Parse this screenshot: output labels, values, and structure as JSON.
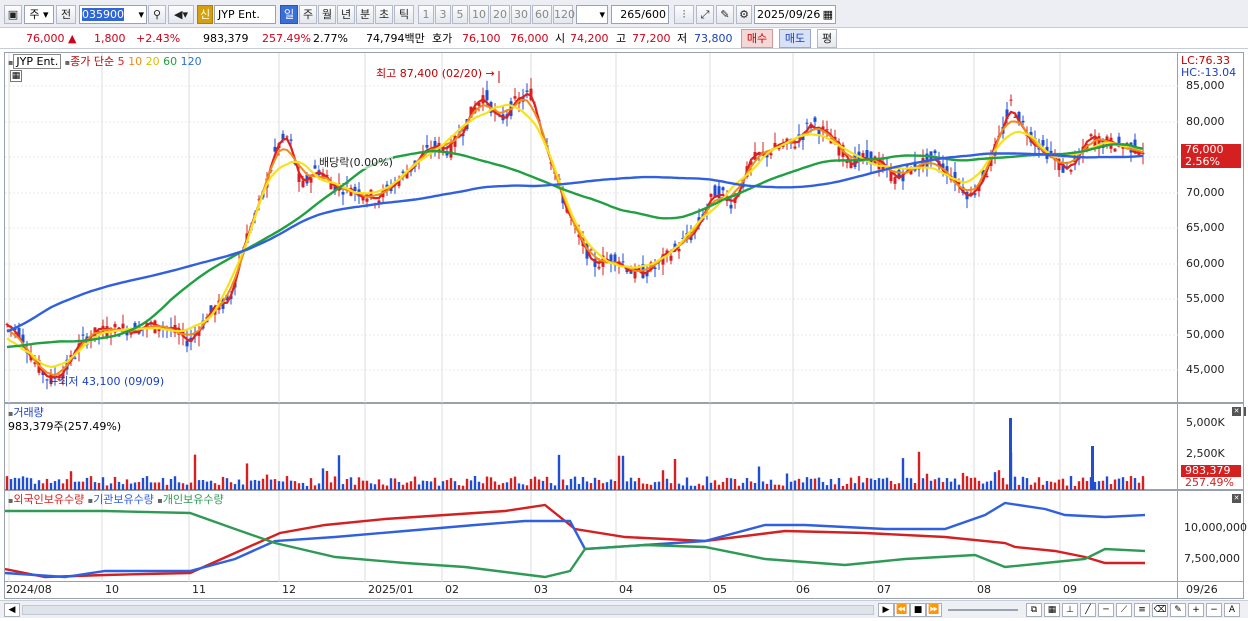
{
  "toolbar": {
    "period_label": "주",
    "view_label": "전",
    "code": "035900",
    "credit_badge": "신",
    "stock_name": "JYP Ent.",
    "periods": [
      "일",
      "주",
      "월",
      "년",
      "분",
      "초",
      "틱"
    ],
    "numbers": [
      "1",
      "3",
      "5",
      "10",
      "20",
      "30",
      "60",
      "120"
    ],
    "count_value": "265",
    "count_max": "/600",
    "date": "2025/09/26"
  },
  "quote": {
    "price": "76,000",
    "change": "1,800",
    "change_pct": "+2.43%",
    "volume": "983,379",
    "volume_ratio": "257.49%",
    "turnover": "2.77%",
    "amount": "74,794백만",
    "ask_label": "호가",
    "ask": "76,100",
    "bid": "76,000",
    "open_label": "시",
    "open": "74,200",
    "high_label": "고",
    "high": "77,200",
    "low_label": "저",
    "low": "73,800",
    "buy_label": "매수",
    "sell_label": "매도",
    "avg_label": "평"
  },
  "price_panel": {
    "stock_tag": "JYP Ent.",
    "legend_prefix": "종가 단순",
    "ma_periods": [
      "5",
      "10",
      "20",
      "60",
      "120"
    ],
    "ma_colors": [
      "#e02020",
      "#f08a1a",
      "#f6e21c",
      "#20a040",
      "#3060e0"
    ],
    "high_annot": "최고 87,400 (02/20)",
    "low_annot": "최저 43,100 (09/09)",
    "dividend_annot": "배당락(0.00%)",
    "lc_label": "LC:76.33",
    "hc_label": "HC:-13.04",
    "price_tag": "76,000",
    "pct_tag": "2.56%",
    "y_ticks": [
      "85,000",
      "80,000",
      "75,000",
      "70,000",
      "65,000",
      "60,000",
      "55,000",
      "50,000",
      "45,000"
    ]
  },
  "volume_panel": {
    "title": "거래량",
    "value": "983,379주(257.49%)",
    "y_ticks": [
      "5,000K",
      "2,500K"
    ],
    "tag_value": "983,379",
    "tag_pct": "257.49%"
  },
  "holdings_panel": {
    "legend": [
      "외국인보유수량",
      "기관보유수량",
      "개인보유수량"
    ],
    "colors": [
      "#d42020",
      "#3060e0",
      "#2f9a55"
    ],
    "y_ticks": [
      "10,000,000",
      "7,500,000"
    ]
  },
  "x_axis": {
    "labels": [
      "2024/08",
      "10",
      "11",
      "12",
      "2025/01",
      "02",
      "03",
      "04",
      "05",
      "06",
      "07",
      "08",
      "09"
    ],
    "last_label": "09/26"
  },
  "chart_data": {
    "type": "candlestick",
    "title": "JYP Ent.",
    "y_range": [
      40000,
      90000
    ],
    "approx_weekly_close": [
      {
        "x": "2024/08",
        "y": 51000
      },
      {
        "x": "2024/09",
        "y": 43100
      },
      {
        "x": "2024/10",
        "y": 51000
      },
      {
        "x": "2024/11",
        "y": 50000
      },
      {
        "x": "2024/12",
        "y": 76000
      },
      {
        "x": "2025/01",
        "y": 71000
      },
      {
        "x": "2025/02",
        "y": 84000
      },
      {
        "x": "2025/03",
        "y": 76000
      },
      {
        "x": "2025/04",
        "y": 59000
      },
      {
        "x": "2025/05",
        "y": 66000
      },
      {
        "x": "2025/06",
        "y": 80000
      },
      {
        "x": "2025/07",
        "y": 72000
      },
      {
        "x": "2025/08",
        "y": 80000
      },
      {
        "x": "2025/09",
        "y": 76000
      }
    ]
  }
}
